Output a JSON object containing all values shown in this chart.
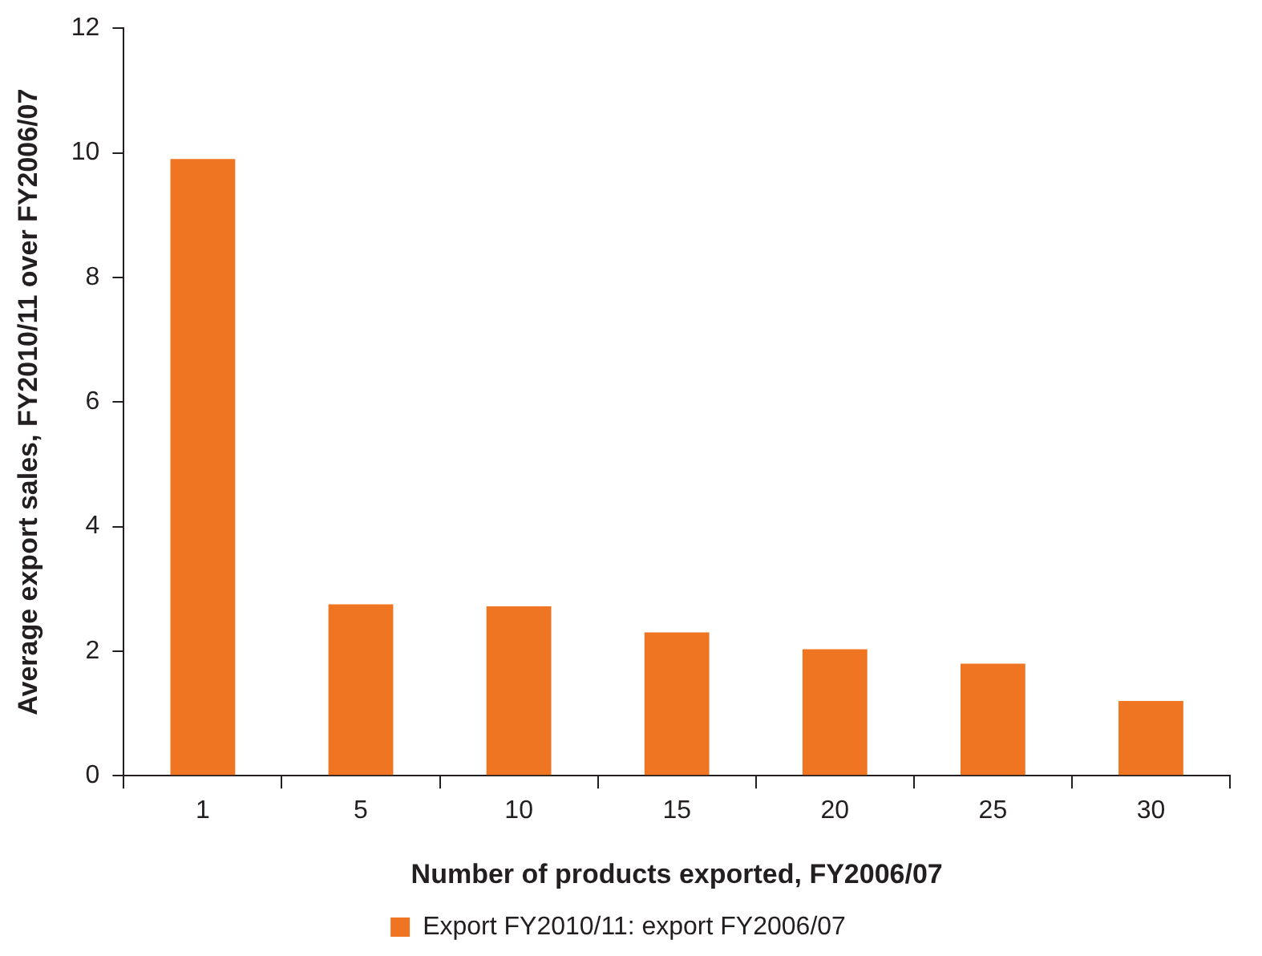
{
  "chart_data": {
    "type": "bar",
    "xlabel": "Number of products exported, FY2006/07",
    "ylabel": "Average export sales, FY2010/11 over FY2006/07",
    "categories": [
      "1",
      "5",
      "10",
      "15",
      "20",
      "25",
      "30"
    ],
    "series": [
      {
        "name": "Export FY2010/11: export FY2006/07",
        "color": "#f07522",
        "values": [
          9.9,
          2.75,
          2.72,
          2.3,
          2.03,
          1.8,
          1.2
        ]
      }
    ],
    "ylim": [
      0,
      12
    ],
    "yticks": [
      0,
      2,
      4,
      6,
      8,
      10,
      12
    ],
    "legend": "bottom"
  }
}
